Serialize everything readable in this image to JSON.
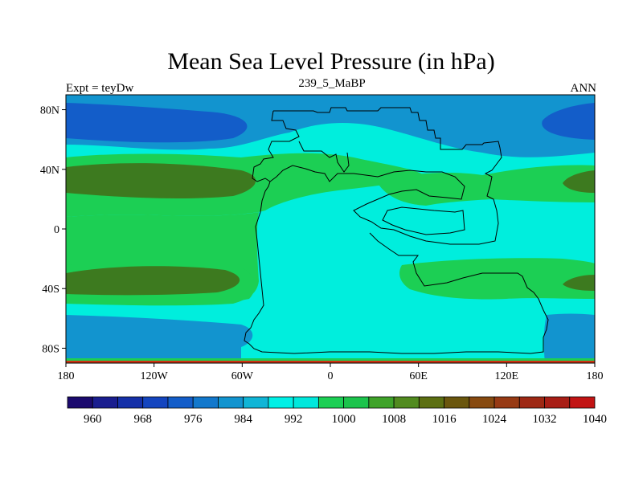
{
  "title": "Mean Sea Level Pressure (in hPa)",
  "subtitle_left": "Expt = teyDw",
  "subtitle_center": "239_5_MaBP",
  "subtitle_right": "ANN",
  "axes": {
    "lon_ticks": [
      "180",
      "120W",
      "60W",
      "0",
      "60E",
      "120E",
      "180"
    ],
    "lat_ticks": [
      "80N",
      "40N",
      "0",
      "40S",
      "80S"
    ]
  },
  "colorbar": {
    "colors": [
      "#1b0a6e",
      "#1a1e8f",
      "#1530a8",
      "#1445bf",
      "#135dc9",
      "#1278cc",
      "#1294cf",
      "#10b5d6",
      "#00f0e6",
      "#00e8dc",
      "#1ccf54",
      "#1cc44c",
      "#3fa32a",
      "#518b1f",
      "#5c6f12",
      "#6a560d",
      "#874a10",
      "#973a14",
      "#9e2814",
      "#a81e16",
      "#c21414"
    ],
    "labels": [
      "960",
      "968",
      "976",
      "984",
      "992",
      "1000",
      "1008",
      "1016",
      "1024",
      "1032",
      "1040"
    ]
  },
  "colors": {
    "deep_low": "#135dc9",
    "low": "#1294cf",
    "mid": "#00eedd",
    "high": "#1ccf54",
    "very_high": "#3d7a1f",
    "border": "#cc3311"
  }
}
